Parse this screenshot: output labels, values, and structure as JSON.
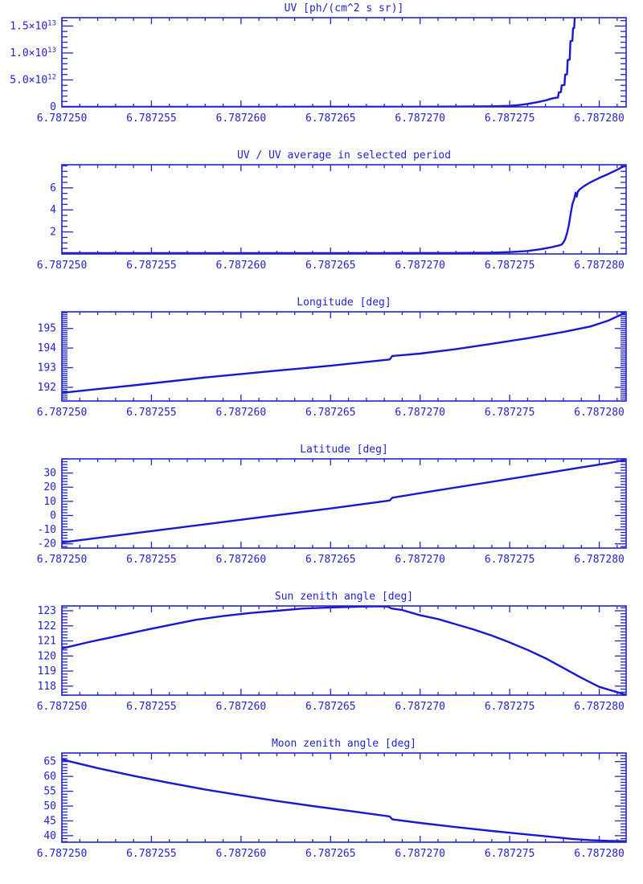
{
  "colors": {
    "background": "#ffffff",
    "ink": "#2323cb",
    "line": "#1717d4"
  },
  "x_axis": {
    "tick_labels": [
      "6.787250",
      "6.787255",
      "6.787260",
      "6.787265",
      "6.787270",
      "6.787275",
      "6.787280"
    ],
    "tick_t": [
      0,
      5,
      10,
      15,
      20,
      25,
      30
    ],
    "minor_step": 1,
    "t_max": 31.5,
    "x_start": 6.78725,
    "x_end": 6.7872815,
    "unit_per_t": 1e-06
  },
  "chart_data": [
    {
      "id": "uv",
      "type": "line",
      "title": "UV [ph/(cm^2 s sr)]",
      "ylabel": "",
      "xlabel": "",
      "y_unit": "1e12 ph/(cm^2 s sr)",
      "ylim": [
        0,
        16.55
      ],
      "y_ticks": [
        {
          "v": 0,
          "label": "0"
        },
        {
          "v": 5,
          "label": "5.0×10^{12}"
        },
        {
          "v": 10,
          "label": "1.0×10^{13}"
        },
        {
          "v": 15,
          "label": "1.5×10^{13}"
        }
      ],
      "y_minor_step": 1,
      "points": [
        [
          0,
          0.02
        ],
        [
          10,
          0.02
        ],
        [
          20,
          0.03
        ],
        [
          24,
          0.1
        ],
        [
          25,
          0.2
        ],
        [
          25.5,
          0.33
        ],
        [
          26,
          0.55
        ],
        [
          26.5,
          0.85
        ],
        [
          27,
          1.2
        ],
        [
          27.4,
          1.6
        ],
        [
          27.7,
          1.75
        ],
        [
          27.74,
          2.7
        ],
        [
          27.86,
          2.75
        ],
        [
          27.9,
          4.0
        ],
        [
          28.06,
          4.05
        ],
        [
          28.1,
          6.0
        ],
        [
          28.2,
          6.05
        ],
        [
          28.24,
          8.7
        ],
        [
          28.35,
          8.75
        ],
        [
          28.39,
          12.2
        ],
        [
          28.5,
          12.25
        ],
        [
          28.54,
          14.6
        ],
        [
          28.6,
          14.65
        ],
        [
          28.64,
          17.5
        ]
      ]
    },
    {
      "id": "uv-ratio",
      "type": "line",
      "title": "UV / UV average in selected period",
      "ylabel": "",
      "xlabel": "",
      "y_unit": "ratio",
      "ylim": [
        0,
        8.1
      ],
      "y_ticks": [
        {
          "v": 2,
          "label": "2"
        },
        {
          "v": 4,
          "label": "4"
        },
        {
          "v": 6,
          "label": "6"
        }
      ],
      "y_minor_step": 0.5,
      "points": [
        [
          0,
          0.08
        ],
        [
          18,
          0.08
        ],
        [
          22,
          0.09
        ],
        [
          24,
          0.12
        ],
        [
          25,
          0.17
        ],
        [
          26,
          0.27
        ],
        [
          26.7,
          0.42
        ],
        [
          27.3,
          0.6
        ],
        [
          27.7,
          0.75
        ],
        [
          27.9,
          0.85
        ],
        [
          28,
          1.05
        ],
        [
          28.1,
          1.35
        ],
        [
          28.2,
          1.9
        ],
        [
          28.3,
          2.6
        ],
        [
          28.4,
          3.6
        ],
        [
          28.5,
          4.5
        ],
        [
          28.6,
          5.0
        ],
        [
          28.68,
          5.55
        ],
        [
          28.74,
          5.2
        ],
        [
          28.8,
          5.65
        ],
        [
          28.9,
          5.85
        ],
        [
          29.1,
          6.1
        ],
        [
          29.5,
          6.5
        ],
        [
          30,
          6.9
        ],
        [
          30.5,
          7.25
        ],
        [
          31,
          7.65
        ],
        [
          31.3,
          7.9
        ],
        [
          31.5,
          8.0
        ]
      ]
    },
    {
      "id": "longitude",
      "type": "line",
      "title": "Longitude [deg]",
      "ylabel": "",
      "xlabel": "",
      "y_unit": "deg",
      "ylim": [
        191.3,
        195.85
      ],
      "y_ticks": [
        {
          "v": 192,
          "label": "192"
        },
        {
          "v": 193,
          "label": "193"
        },
        {
          "v": 194,
          "label": "194"
        },
        {
          "v": 195,
          "label": "195"
        }
      ],
      "y_minor_step": 0.1,
      "points": [
        [
          0,
          191.72
        ],
        [
          4,
          192.1
        ],
        [
          8,
          192.5
        ],
        [
          12,
          192.85
        ],
        [
          15,
          193.1
        ],
        [
          18.3,
          193.42
        ],
        [
          18.45,
          193.6
        ],
        [
          20,
          193.72
        ],
        [
          22,
          193.95
        ],
        [
          24,
          194.22
        ],
        [
          26,
          194.5
        ],
        [
          28,
          194.82
        ],
        [
          29.5,
          195.1
        ],
        [
          30.5,
          195.4
        ],
        [
          31.5,
          195.82
        ]
      ]
    },
    {
      "id": "latitude",
      "type": "line",
      "title": "Latitude [deg]",
      "ylabel": "",
      "xlabel": "",
      "y_unit": "deg",
      "ylim": [
        -23,
        40
      ],
      "y_ticks": [
        {
          "v": -20,
          "label": "-20"
        },
        {
          "v": -10,
          "label": "-10"
        },
        {
          "v": 0,
          "label": "0"
        },
        {
          "v": 10,
          "label": "10"
        },
        {
          "v": 20,
          "label": "20"
        },
        {
          "v": 30,
          "label": "30"
        }
      ],
      "y_minor_step": 2,
      "points": [
        [
          0,
          -19
        ],
        [
          4,
          -12.6
        ],
        [
          8,
          -6.2
        ],
        [
          12,
          0.2
        ],
        [
          15,
          5.0
        ],
        [
          18.3,
          10.6
        ],
        [
          18.45,
          12.6
        ],
        [
          21,
          17.8
        ],
        [
          24,
          23.8
        ],
        [
          27,
          29.9
        ],
        [
          29,
          34.0
        ],
        [
          30.5,
          37.0
        ],
        [
          31.5,
          39.3
        ]
      ]
    },
    {
      "id": "sun-zenith",
      "type": "line",
      "title": "Sun zenith angle [deg]",
      "ylabel": "",
      "xlabel": "",
      "y_unit": "deg",
      "ylim": [
        117.4,
        123.32
      ],
      "y_ticks": [
        {
          "v": 118,
          "label": "118"
        },
        {
          "v": 119,
          "label": "119"
        },
        {
          "v": 120,
          "label": "120"
        },
        {
          "v": 121,
          "label": "121"
        },
        {
          "v": 122,
          "label": "122"
        },
        {
          "v": 123,
          "label": "123"
        }
      ],
      "y_minor_step": 0.2,
      "points": [
        [
          0,
          120.5
        ],
        [
          1.5,
          120.92
        ],
        [
          3,
          121.3
        ],
        [
          4.5,
          121.68
        ],
        [
          6,
          122.05
        ],
        [
          7.5,
          122.4
        ],
        [
          9,
          122.65
        ],
        [
          10.5,
          122.85
        ],
        [
          12,
          123.0
        ],
        [
          13.5,
          123.15
        ],
        [
          15,
          123.22
        ],
        [
          16.5,
          123.27
        ],
        [
          17.8,
          123.3
        ],
        [
          18.2,
          123.27
        ],
        [
          18.4,
          123.15
        ],
        [
          19,
          123.05
        ],
        [
          20,
          122.7
        ],
        [
          21,
          122.45
        ],
        [
          22,
          122.1
        ],
        [
          23,
          121.75
        ],
        [
          24,
          121.35
        ],
        [
          25,
          120.9
        ],
        [
          26,
          120.4
        ],
        [
          27,
          119.85
        ],
        [
          28,
          119.2
        ],
        [
          29,
          118.55
        ],
        [
          30,
          117.95
        ],
        [
          31,
          117.6
        ],
        [
          31.5,
          117.42
        ]
      ]
    },
    {
      "id": "moon-zenith",
      "type": "line",
      "title": "Moon zenith angle [deg]",
      "ylabel": "",
      "xlabel": "",
      "y_unit": "deg",
      "ylim": [
        37.8,
        67.9
      ],
      "y_ticks": [
        {
          "v": 40,
          "label": "40"
        },
        {
          "v": 45,
          "label": "45"
        },
        {
          "v": 50,
          "label": "50"
        },
        {
          "v": 55,
          "label": "55"
        },
        {
          "v": 60,
          "label": "60"
        },
        {
          "v": 65,
          "label": "65"
        }
      ],
      "y_minor_step": 1,
      "points": [
        [
          0,
          65.7
        ],
        [
          2,
          62.8
        ],
        [
          4,
          60.2
        ],
        [
          6,
          57.8
        ],
        [
          8,
          55.6
        ],
        [
          10,
          53.6
        ],
        [
          12,
          51.7
        ],
        [
          14,
          50.0
        ],
        [
          16,
          48.4
        ],
        [
          18.3,
          46.5
        ],
        [
          18.45,
          45.5
        ],
        [
          20,
          44.3
        ],
        [
          22,
          42.9
        ],
        [
          24,
          41.6
        ],
        [
          25,
          41.0
        ],
        [
          26,
          40.4
        ],
        [
          27,
          39.8
        ],
        [
          28.5,
          38.9
        ],
        [
          29.5,
          38.5
        ],
        [
          30.5,
          38.25
        ],
        [
          31.5,
          38.15
        ]
      ]
    }
  ]
}
